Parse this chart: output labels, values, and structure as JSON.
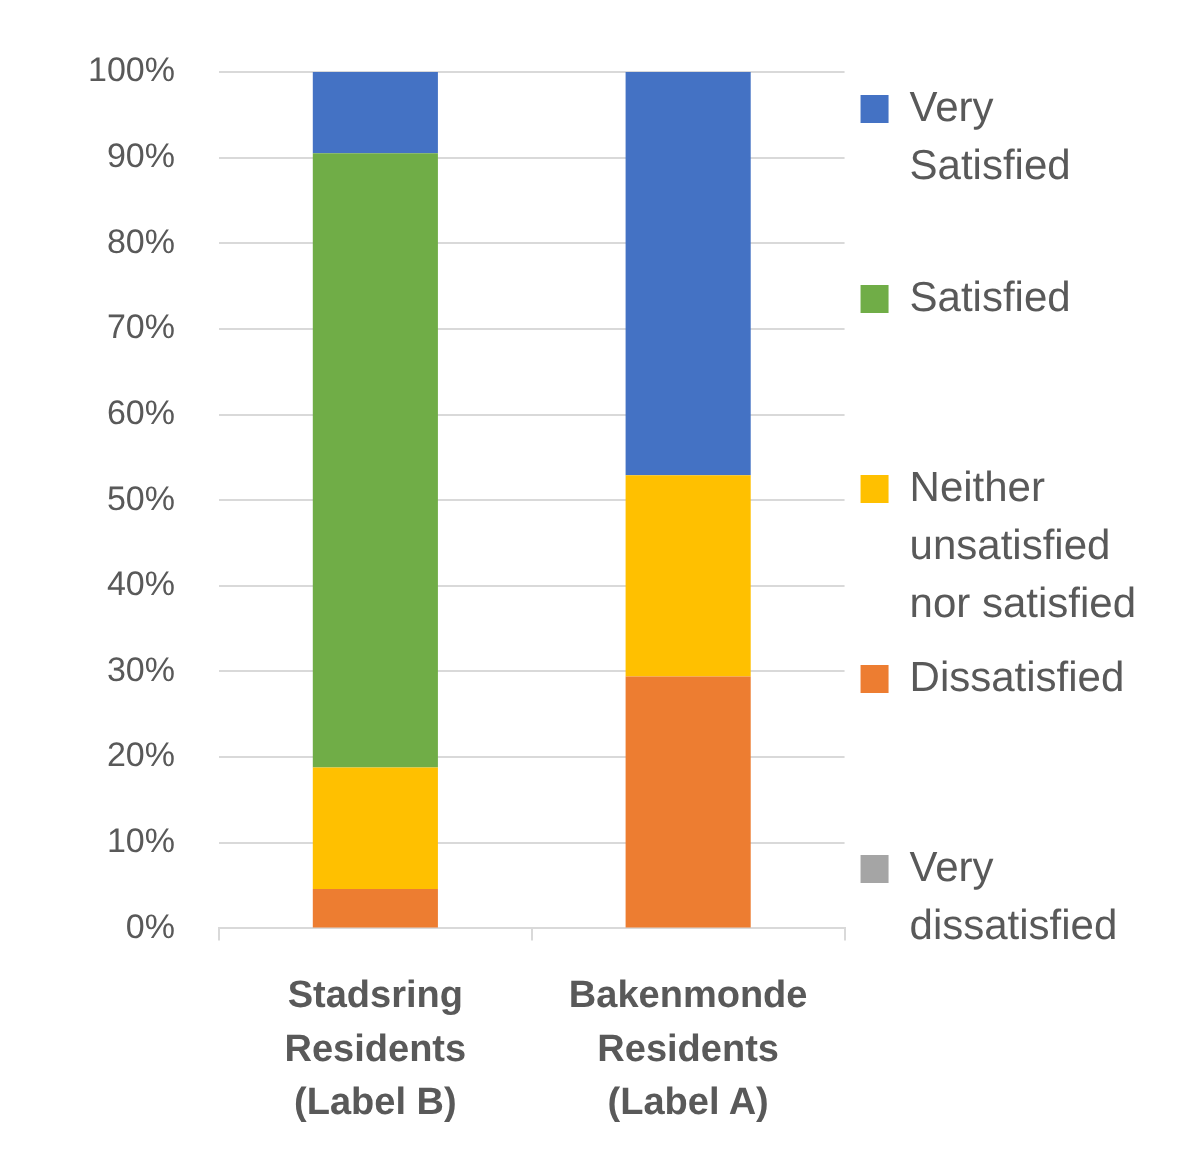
{
  "chart_data": {
    "type": "bar",
    "stacked": true,
    "categories": [
      "Stadsring Residents (Label B)",
      "Bakenmonde Residents (Label A)"
    ],
    "series": [
      {
        "name": "Very dissatisfied",
        "color": "#a5a5a5",
        "values": [
          0,
          0
        ]
      },
      {
        "name": "Dissatisfied",
        "color": "#ed7d31",
        "values": [
          4.6,
          29.4
        ]
      },
      {
        "name": "Neither unsatisfied nor satisfied",
        "color": "#ffc000",
        "values": [
          14.2,
          23.5
        ]
      },
      {
        "name": "Satisfied",
        "color": "#70ad47",
        "values": [
          71.7,
          0
        ]
      },
      {
        "name": "Very Satisfied",
        "color": "#4472c4",
        "values": [
          9.5,
          47.1
        ]
      }
    ],
    "ylim": [
      0,
      100
    ],
    "yticks": [
      {
        "value": 0,
        "label": "0%"
      },
      {
        "value": 10,
        "label": "10%"
      },
      {
        "value": 20,
        "label": "20%"
      },
      {
        "value": 30,
        "label": "30%"
      },
      {
        "value": 40,
        "label": "40%"
      },
      {
        "value": 50,
        "label": "50%"
      },
      {
        "value": 60,
        "label": "60%"
      },
      {
        "value": 70,
        "label": "70%"
      },
      {
        "value": 80,
        "label": "80%"
      },
      {
        "value": 90,
        "label": "90%"
      },
      {
        "value": 100,
        "label": "100%"
      }
    ],
    "grid": "y",
    "legend": "right"
  }
}
